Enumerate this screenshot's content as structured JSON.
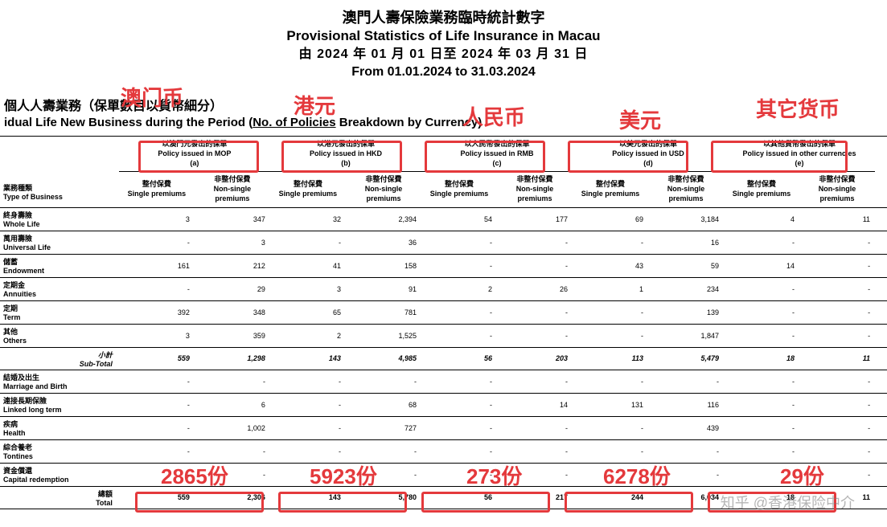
{
  "header": {
    "title_cn": "澳門人壽保險業務臨時統計數字",
    "title_en": "Provisional Statistics of Life Insurance in Macau",
    "dates_cn": "由 2024 年 01 月 01 日至 2024 年 03 月 31 日",
    "dates_en": "From 01.01.2024 to 31.03.2024"
  },
  "section": {
    "cn": "個人人壽業務（保單數目以貨幣細分）",
    "en_prefix": "idual Life New Business during the Period (",
    "en_underline": "No. of Policies",
    "en_suffix": " Breakdown by Currency)"
  },
  "table": {
    "type_hdr_cn": "業務種類",
    "type_hdr_en": "Type of Business",
    "groups": [
      {
        "cn": "以澳門元發出的保單",
        "en": "Policy issued in MOP",
        "code": "(a)"
      },
      {
        "cn": "以港元發出的保單",
        "en": "Policy issued in HKD",
        "code": "(b)"
      },
      {
        "cn": "以人民幣發出的保單",
        "en": "Policy issued in RMB",
        "code": "(c)"
      },
      {
        "cn": "以美元發出的保單",
        "en": "Policy issued in USD",
        "code": "(d)"
      },
      {
        "cn": "以其他貨幣發出的保單",
        "en": "Policy issued in other currencies",
        "code": "(e)"
      }
    ],
    "sub_hdr": {
      "single_cn": "整付保費",
      "single_en": "Single premiums",
      "nonsingle_cn": "非整付保費",
      "nonsingle_en": "Non-single premiums",
      "tail": "S"
    },
    "rows": [
      {
        "cn": "終身壽險",
        "en": "Whole Life",
        "v": [
          "3",
          "347",
          "32",
          "2,394",
          "54",
          "177",
          "69",
          "3,184",
          "4",
          "11"
        ]
      },
      {
        "cn": "萬用壽險",
        "en": "Universal Life",
        "v": [
          "-",
          "3",
          "-",
          "36",
          "-",
          "-",
          "-",
          "16",
          "-",
          "-"
        ]
      },
      {
        "cn": "儲蓄",
        "en": "Endowment",
        "v": [
          "161",
          "212",
          "41",
          "158",
          "-",
          "-",
          "43",
          "59",
          "14",
          "-"
        ]
      },
      {
        "cn": "定期金",
        "en": "Annuities",
        "v": [
          "-",
          "29",
          "3",
          "91",
          "2",
          "26",
          "1",
          "234",
          "-",
          "-"
        ]
      },
      {
        "cn": "定期",
        "en": "Term",
        "v": [
          "392",
          "348",
          "65",
          "781",
          "-",
          "-",
          "-",
          "139",
          "-",
          "-"
        ]
      },
      {
        "cn": "其他",
        "en": "Others",
        "v": [
          "3",
          "359",
          "2",
          "1,525",
          "-",
          "-",
          "-",
          "1,847",
          "-",
          "-"
        ]
      }
    ],
    "subtotal": {
      "cn": "小計",
      "en": "Sub-Total",
      "v": [
        "559",
        "1,298",
        "143",
        "4,985",
        "56",
        "203",
        "113",
        "5,479",
        "18",
        "11"
      ]
    },
    "rows2": [
      {
        "cn": "結婚及出生",
        "en": "Marriage and Birth",
        "v": [
          "-",
          "-",
          "-",
          "-",
          "-",
          "-",
          "-",
          "-",
          "-",
          "-"
        ]
      },
      {
        "cn": "連接長期保險",
        "en": "Linked long term",
        "v": [
          "-",
          "6",
          "-",
          "68",
          "-",
          "14",
          "131",
          "116",
          "-",
          "-"
        ]
      },
      {
        "cn": "疾病",
        "en": "Health",
        "v": [
          "-",
          "1,002",
          "-",
          "727",
          "-",
          "-",
          "-",
          "439",
          "-",
          "-"
        ]
      },
      {
        "cn": "綜合養老",
        "en": "Tontines",
        "v": [
          "-",
          "-",
          "-",
          "-",
          "-",
          "-",
          "-",
          "-",
          "-",
          "-"
        ]
      },
      {
        "cn": "資金償還",
        "en": "Capital redemption",
        "v": [
          "-",
          "-",
          "-",
          "-",
          "-",
          "-",
          "-",
          "-",
          "-",
          "-"
        ]
      }
    ],
    "total": {
      "cn": "總額",
      "en": "Total",
      "v": [
        "559",
        "2,306",
        "143",
        "5,780",
        "56",
        "217",
        "244",
        "6,034",
        "18",
        "11"
      ]
    }
  },
  "annotations": {
    "labels_top": [
      "澳门币",
      "港元",
      "人民币",
      "美元",
      "其它货币"
    ],
    "counts": [
      "2865份",
      "5923份",
      "273份",
      "6278份",
      "29份"
    ]
  },
  "watermark": "知乎 @香港保险中介",
  "style": {
    "highlight_color": "#e4393c",
    "col_widths": {
      "label": 140,
      "data": 89,
      "tail": 14
    }
  }
}
